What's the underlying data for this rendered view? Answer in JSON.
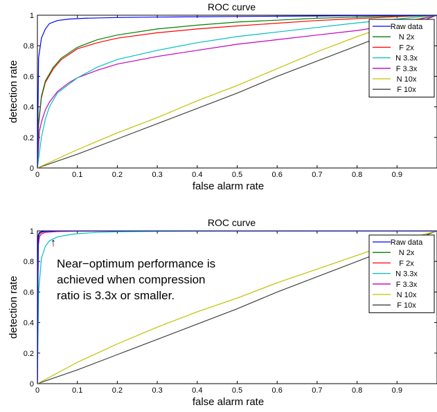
{
  "chart_data": [
    {
      "type": "line",
      "title": "ROC curve",
      "xlabel": "false alarm rate",
      "ylabel": "detection rate",
      "xlim": [
        0,
        1
      ],
      "ylim": [
        0,
        1
      ],
      "xticks": [
        0,
        0.1,
        0.2,
        0.3,
        0.4,
        0.5,
        0.6,
        0.7,
        0.8,
        0.9
      ],
      "xtick_labels": [
        "0",
        "0.1",
        "0.2",
        "0.3",
        "0.4",
        "0.5",
        "0.6",
        "0.7",
        "0.8",
        "0.9"
      ],
      "yticks": [
        0,
        0.2,
        0.4,
        0.6,
        0.8,
        1
      ],
      "ytick_labels": [
        "0",
        "0.2",
        "0.4",
        "0.6",
        "0.8",
        "1"
      ],
      "grid": false,
      "legend_position": "top-right",
      "series": [
        {
          "name": "Raw data",
          "color": "#0000ff",
          "x": [
            0,
            0.003,
            0.01,
            0.02,
            0.03,
            0.05,
            0.08,
            0.12,
            0.2,
            0.3,
            0.5,
            0.7,
            1.0
          ],
          "y": [
            0,
            0.72,
            0.85,
            0.91,
            0.945,
            0.965,
            0.975,
            0.98,
            0.985,
            0.988,
            0.992,
            0.995,
            1.0
          ]
        },
        {
          "name": "N 2x",
          "color": "#008000",
          "x": [
            0,
            0.003,
            0.01,
            0.02,
            0.04,
            0.06,
            0.1,
            0.15,
            0.2,
            0.3,
            0.4,
            0.5,
            0.7,
            0.9,
            1.0
          ],
          "y": [
            0,
            0.3,
            0.47,
            0.57,
            0.66,
            0.72,
            0.79,
            0.84,
            0.87,
            0.91,
            0.935,
            0.955,
            0.98,
            0.995,
            1.0
          ]
        },
        {
          "name": "F 2x",
          "color": "#ff0000",
          "x": [
            0,
            0.003,
            0.01,
            0.02,
            0.04,
            0.06,
            0.1,
            0.15,
            0.2,
            0.3,
            0.4,
            0.5,
            0.7,
            0.9,
            1.0
          ],
          "y": [
            0,
            0.28,
            0.46,
            0.56,
            0.65,
            0.71,
            0.78,
            0.82,
            0.85,
            0.885,
            0.91,
            0.93,
            0.965,
            0.99,
            1.0
          ]
        },
        {
          "name": "N 3.3x",
          "color": "#00c0c0",
          "x": [
            0,
            0.005,
            0.01,
            0.02,
            0.03,
            0.05,
            0.08,
            0.1,
            0.15,
            0.2,
            0.3,
            0.4,
            0.5,
            0.6,
            0.7,
            0.8,
            0.9,
            1.0
          ],
          "y": [
            0,
            0.1,
            0.2,
            0.32,
            0.4,
            0.49,
            0.55,
            0.59,
            0.66,
            0.71,
            0.77,
            0.82,
            0.86,
            0.89,
            0.92,
            0.95,
            0.975,
            1.0
          ]
        },
        {
          "name": "F 3.3x",
          "color": "#bf00bf",
          "x": [
            0,
            0.005,
            0.01,
            0.02,
            0.03,
            0.05,
            0.08,
            0.1,
            0.15,
            0.2,
            0.3,
            0.4,
            0.5,
            0.6,
            0.7,
            0.8,
            0.9,
            1.0
          ],
          "y": [
            0,
            0.24,
            0.3,
            0.38,
            0.43,
            0.5,
            0.56,
            0.59,
            0.64,
            0.68,
            0.73,
            0.77,
            0.81,
            0.84,
            0.87,
            0.9,
            0.94,
            1.0
          ]
        },
        {
          "name": "N 10x",
          "color": "#c0c000",
          "x": [
            0,
            0.1,
            0.2,
            0.3,
            0.4,
            0.5,
            0.6,
            0.7,
            0.8,
            0.9,
            1.0
          ],
          "y": [
            0,
            0.12,
            0.23,
            0.33,
            0.44,
            0.54,
            0.65,
            0.76,
            0.86,
            0.95,
            1.0
          ]
        },
        {
          "name": "F 10x",
          "color": "#404040",
          "x": [
            0,
            0.1,
            0.2,
            0.3,
            0.4,
            0.5,
            0.6,
            0.7,
            0.8,
            0.9,
            1.0
          ],
          "y": [
            0,
            0.09,
            0.19,
            0.29,
            0.39,
            0.49,
            0.6,
            0.7,
            0.8,
            0.9,
            1.0
          ]
        }
      ]
    },
    {
      "type": "line",
      "title": "ROC curve",
      "xlabel": "false alarm rate",
      "ylabel": "detection rate",
      "xlim": [
        0,
        1
      ],
      "ylim": [
        0,
        1
      ],
      "xticks": [
        0,
        0.1,
        0.2,
        0.3,
        0.4,
        0.5,
        0.6,
        0.7,
        0.8,
        0.9
      ],
      "xtick_labels": [
        "0",
        "0.1",
        "0.2",
        "0.3",
        "0.4",
        "0.5",
        "0.6",
        "0.7",
        "0.8",
        "0.9"
      ],
      "yticks": [
        0,
        0.2,
        0.4,
        0.6,
        0.8,
        1
      ],
      "ytick_labels": [
        "0",
        "0.2",
        "0.4",
        "0.6",
        "0.8",
        "1"
      ],
      "grid": false,
      "legend_position": "top-right",
      "annotation": {
        "arrow_text": "↑",
        "lines": [
          "Near−optimum performance is",
          "achieved when compression",
          "ratio is 3.3x or smaller."
        ]
      },
      "series": [
        {
          "name": "Raw data",
          "color": "#0000ff",
          "x": [
            0,
            0.002,
            0.005,
            0.01,
            0.02,
            0.05,
            0.1,
            1.0
          ],
          "y": [
            0,
            0.97,
            0.99,
            0.995,
            0.998,
            1.0,
            1.0,
            1.0
          ]
        },
        {
          "name": "N 2x",
          "color": "#008000",
          "x": [
            0,
            0.002,
            0.005,
            0.01,
            0.02,
            0.05,
            0.1,
            1.0
          ],
          "y": [
            0,
            0.95,
            0.985,
            0.993,
            0.997,
            1.0,
            1.0,
            1.0
          ]
        },
        {
          "name": "F 2x",
          "color": "#ff0000",
          "x": [
            0,
            0.002,
            0.005,
            0.01,
            0.02,
            0.05,
            0.1,
            1.0
          ],
          "y": [
            0,
            0.94,
            0.98,
            0.99,
            0.996,
            0.999,
            1.0,
            1.0
          ]
        },
        {
          "name": "N 3.3x",
          "color": "#00c0c0",
          "x": [
            0,
            0.003,
            0.01,
            0.02,
            0.03,
            0.05,
            0.08,
            0.1,
            0.15,
            0.2,
            0.3,
            0.5,
            1.0
          ],
          "y": [
            0,
            0.6,
            0.82,
            0.9,
            0.935,
            0.96,
            0.975,
            0.982,
            0.99,
            0.994,
            0.997,
            0.999,
            1.0
          ]
        },
        {
          "name": "F 3.3x",
          "color": "#bf00bf",
          "x": [
            0,
            0.002,
            0.005,
            0.01,
            0.02,
            0.05,
            0.1,
            0.3,
            1.0
          ],
          "y": [
            0,
            0.9,
            0.96,
            0.98,
            0.99,
            0.996,
            0.998,
            1.0,
            1.0
          ]
        },
        {
          "name": "N 10x",
          "color": "#c0c000",
          "x": [
            0,
            0.1,
            0.2,
            0.3,
            0.4,
            0.5,
            0.6,
            0.7,
            0.8,
            0.9,
            1.0
          ],
          "y": [
            0,
            0.14,
            0.26,
            0.37,
            0.47,
            0.56,
            0.66,
            0.75,
            0.84,
            0.93,
            1.0
          ]
        },
        {
          "name": "F 10x",
          "color": "#404040",
          "x": [
            0,
            0.1,
            0.2,
            0.3,
            0.4,
            0.5,
            0.6,
            0.7,
            0.8,
            0.9,
            1.0
          ],
          "y": [
            0,
            0.09,
            0.19,
            0.29,
            0.39,
            0.49,
            0.6,
            0.7,
            0.8,
            0.9,
            1.0
          ]
        }
      ]
    }
  ]
}
